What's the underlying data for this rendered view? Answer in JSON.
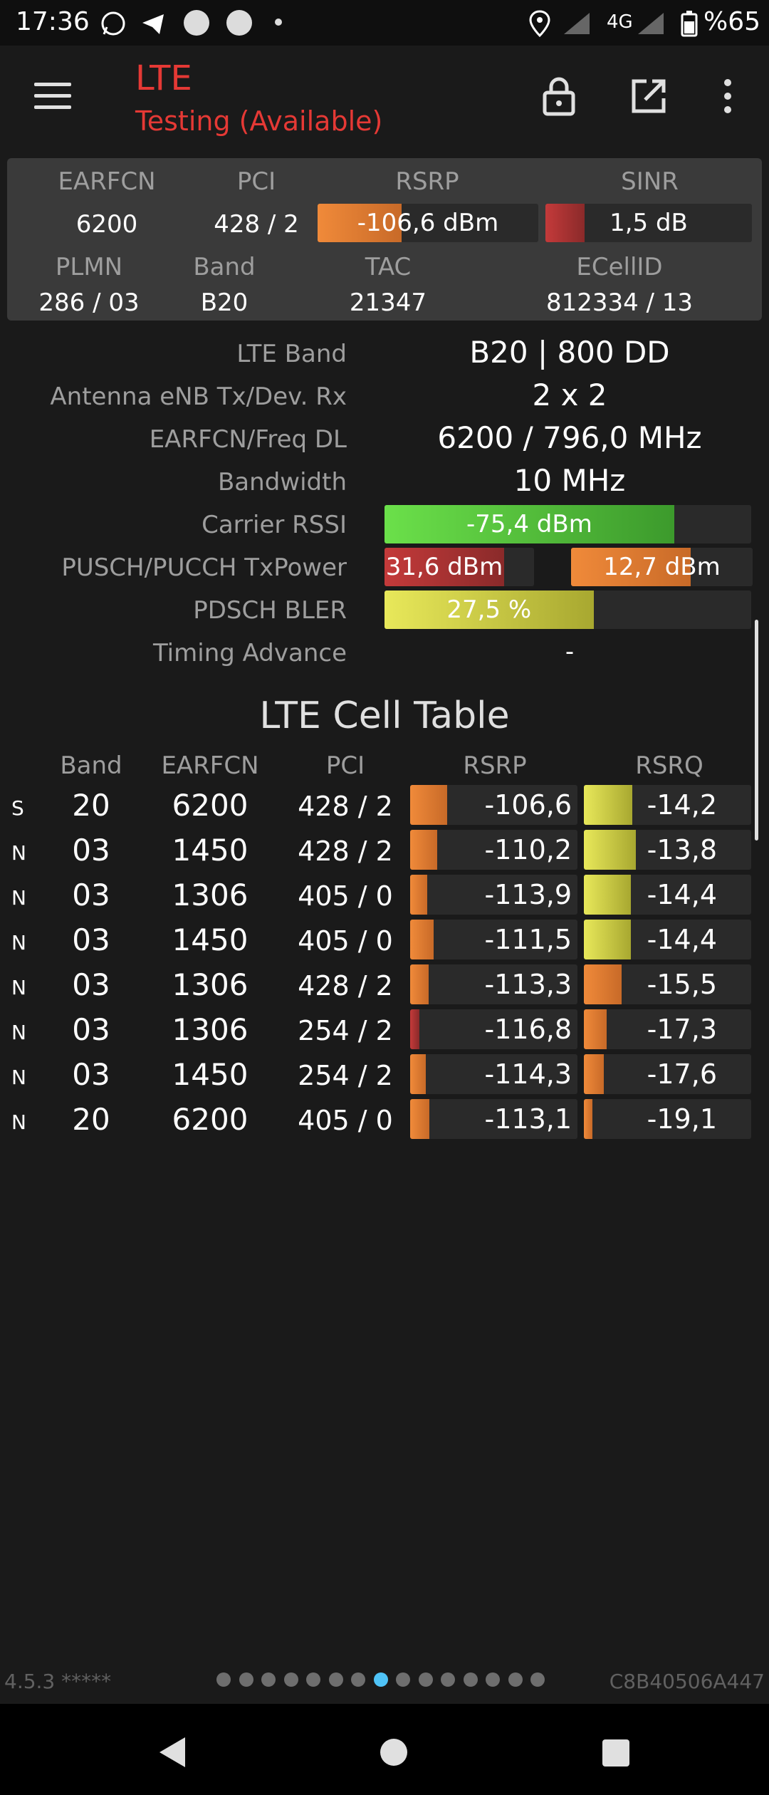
{
  "status_bar": {
    "time": "17:36",
    "network": "4G",
    "battery": "%65"
  },
  "app_bar": {
    "title": "LTE",
    "subtitle": "Testing (Available)",
    "icons": [
      "menu-icon",
      "lock-icon",
      "open-external-icon",
      "more-vert-icon"
    ]
  },
  "summary": {
    "labels": {
      "earfcn": "EARFCN",
      "pci": "PCI",
      "rsrp": "RSRP",
      "sinr": "SINR",
      "plmn": "PLMN",
      "band": "Band",
      "tac": "TAC",
      "ecellid": "ECellID"
    },
    "earfcn": "6200",
    "pci": "428 / 2",
    "rsrp": "-106,6 dBm",
    "rsrp_level": 0.38,
    "sinr": "1,5 dB",
    "sinr_level": 0.19,
    "plmn": "286 / 03",
    "band": "B20",
    "tac": "21347",
    "ecellid": "812334 / 13"
  },
  "details": {
    "lte_band": {
      "label": "LTE Band",
      "value": "B20 | 800 DD"
    },
    "antenna": {
      "label": "Antenna eNB Tx/Dev. Rx",
      "value": "2 x 2"
    },
    "earfcn_freq": {
      "label": "EARFCN/Freq DL",
      "value": "6200 / 796,0 MHz"
    },
    "bandwidth": {
      "label": "Bandwidth",
      "value": "10 MHz"
    },
    "rssi": {
      "label": "Carrier RSSI",
      "value": "-75,4 dBm",
      "level": 0.79
    },
    "txpower": {
      "label": "PUSCH/PUCCH TxPower",
      "pusch": "31,6 dBm",
      "pusch_level": 0.8,
      "pucch": "12,7 dBm",
      "pucch_level": 0.66
    },
    "bler": {
      "label": "PDSCH BLER",
      "value": "27,5 %",
      "level": 0.57
    },
    "timing": {
      "label": "Timing Advance",
      "value": "-"
    }
  },
  "cell_table": {
    "title": "LTE Cell Table",
    "headers": [
      "Band",
      "EARFCN",
      "PCI",
      "RSRP",
      "RSRQ"
    ],
    "rows": [
      {
        "type": "S",
        "band": "20",
        "earfcn": "6200",
        "pci": "428 / 2",
        "rsrp": "-106,6",
        "rsrq": "-14,2"
      },
      {
        "type": "N",
        "band": "03",
        "earfcn": "1450",
        "pci": "428 / 2",
        "rsrp": "-110,2",
        "rsrq": "-13,8"
      },
      {
        "type": "N",
        "band": "03",
        "earfcn": "1306",
        "pci": "405 / 0",
        "rsrp": "-113,9",
        "rsrq": "-14,4"
      },
      {
        "type": "N",
        "band": "03",
        "earfcn": "1450",
        "pci": "405 / 0",
        "rsrp": "-111,5",
        "rsrq": "-14,4"
      },
      {
        "type": "N",
        "band": "03",
        "earfcn": "1306",
        "pci": "428 / 2",
        "rsrp": "-113,3",
        "rsrq": "-15,5"
      },
      {
        "type": "N",
        "band": "03",
        "earfcn": "1306",
        "pci": "254 / 2",
        "rsrp": "-116,8",
        "rsrq": "-17,3"
      },
      {
        "type": "N",
        "band": "03",
        "earfcn": "1450",
        "pci": "254 / 2",
        "rsrp": "-114,3",
        "rsrq": "-17,6"
      },
      {
        "type": "N",
        "band": "20",
        "earfcn": "6200",
        "pci": "405 / 0",
        "rsrp": "-113,1",
        "rsrq": "-19,1"
      }
    ]
  },
  "footer": {
    "version": "4.5.3 *****",
    "device_id": "C8B40506A447",
    "page_count": 15,
    "active_page": 8
  },
  "colors": {
    "accent_red": "#e53935",
    "orange": "#e07830",
    "red_bar": "#a83232",
    "green_bar": "#5ac63a",
    "yellow_bar": "#d8d850"
  }
}
